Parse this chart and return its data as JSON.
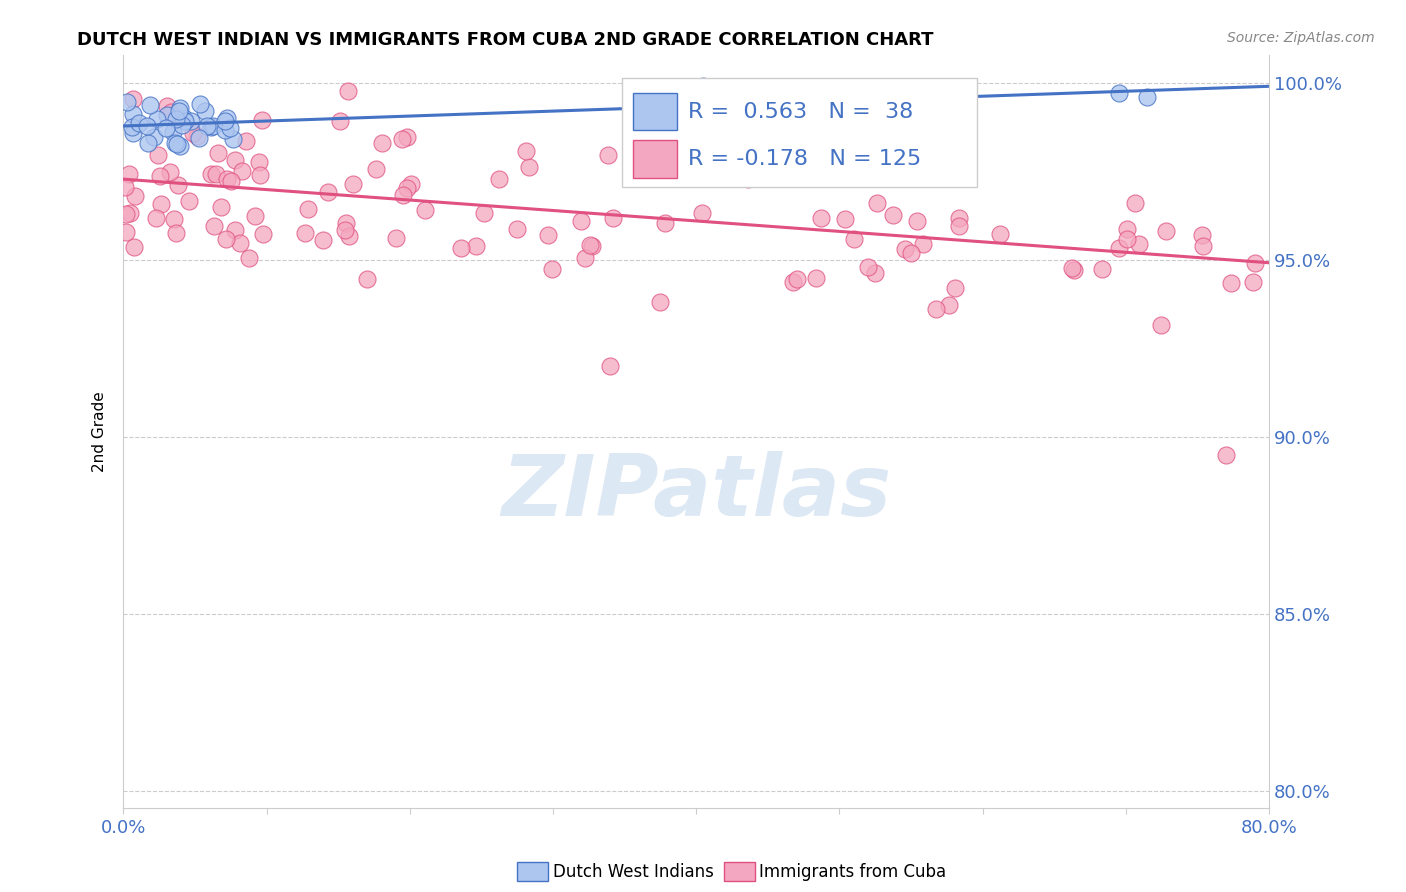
{
  "title": "DUTCH WEST INDIAN VS IMMIGRANTS FROM CUBA 2ND GRADE CORRELATION CHART",
  "source": "Source: ZipAtlas.com",
  "ylabel": "2nd Grade",
  "xlim": [
    0.0,
    0.8
  ],
  "ylim": [
    0.795,
    1.008
  ],
  "xtick_positions": [
    0.0,
    0.1,
    0.2,
    0.3,
    0.4,
    0.5,
    0.6,
    0.7,
    0.8
  ],
  "xtick_labels": [
    "0.0%",
    "",
    "",
    "",
    "",
    "",
    "",
    "",
    "80.0%"
  ],
  "ytick_positions": [
    0.8,
    0.85,
    0.9,
    0.95,
    1.0
  ],
  "ytick_labels": [
    "80.0%",
    "85.0%",
    "90.0%",
    "95.0%",
    "100.0%"
  ],
  "blue_R": 0.563,
  "blue_N": 38,
  "pink_R": -0.178,
  "pink_N": 125,
  "blue_fill_color": "#adc6f0",
  "blue_edge_color": "#4472c4",
  "pink_fill_color": "#f4a7c0",
  "pink_edge_color": "#e05080",
  "blue_line_color": "#4472c4",
  "pink_line_color": "#e05080",
  "legend_label_blue": "Dutch West Indians",
  "legend_label_pink": "Immigrants from Cuba",
  "title_fontsize": 13,
  "axis_fontsize": 13,
  "legend_fontsize": 16
}
